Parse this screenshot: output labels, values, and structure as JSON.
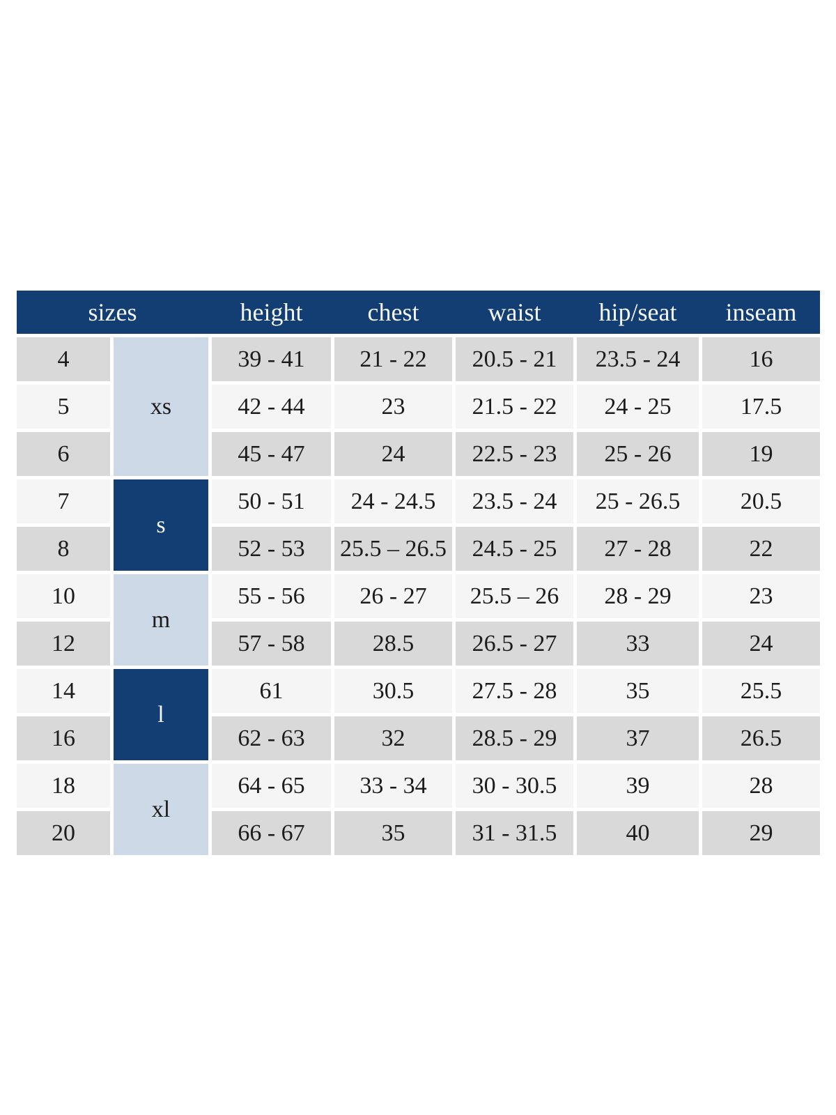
{
  "theme": {
    "page_bg": "#ffffff",
    "header_bg": "#133e74",
    "header_text": "#f4f6f9",
    "group_light_bg": "#cdd9e6",
    "group_dark_bg": "#133e74",
    "group_dark_text": "#f4f6f9",
    "row_gray_bg": "#d9d9d9",
    "row_light_bg": "#f5f5f5",
    "cell_text": "#1c1c1c"
  },
  "chart_data": {
    "type": "table",
    "title": "",
    "columns": [
      "sizes",
      "height",
      "chest",
      "waist",
      "hip/seat",
      "inseam"
    ],
    "size_groups": [
      {
        "label": "xs",
        "sizes": [
          "4",
          "5",
          "6"
        ]
      },
      {
        "label": "s",
        "sizes": [
          "7",
          "8"
        ]
      },
      {
        "label": "m",
        "sizes": [
          "10",
          "12"
        ]
      },
      {
        "label": "l",
        "sizes": [
          "14",
          "16"
        ]
      },
      {
        "label": "xl",
        "sizes": [
          "18",
          "20"
        ]
      }
    ],
    "rows": [
      {
        "size": "4",
        "group": "xs",
        "height": "39 - 41",
        "chest": "21 - 22",
        "waist": "20.5 - 21",
        "hip_seat": "23.5 - 24",
        "inseam": "16"
      },
      {
        "size": "5",
        "group": "xs",
        "height": "42 - 44",
        "chest": "23",
        "waist": "21.5 - 22",
        "hip_seat": "24 - 25",
        "inseam": "17.5"
      },
      {
        "size": "6",
        "group": "xs",
        "height": "45 - 47",
        "chest": "24",
        "waist": "22.5 - 23",
        "hip_seat": "25 - 26",
        "inseam": "19"
      },
      {
        "size": "7",
        "group": "s",
        "height": "50 - 51",
        "chest": "24 - 24.5",
        "waist": "23.5 - 24",
        "hip_seat": "25 - 26.5",
        "inseam": "20.5"
      },
      {
        "size": "8",
        "group": "s",
        "height": "52 - 53",
        "chest": "25.5 – 26.5",
        "waist": "24.5 - 25",
        "hip_seat": "27 - 28",
        "inseam": "22"
      },
      {
        "size": "10",
        "group": "m",
        "height": "55 - 56",
        "chest": "26 - 27",
        "waist": "25.5 – 26",
        "hip_seat": "28 - 29",
        "inseam": "23"
      },
      {
        "size": "12",
        "group": "m",
        "height": "57 - 58",
        "chest": "28.5",
        "waist": "26.5 - 27",
        "hip_seat": "33",
        "inseam": "24"
      },
      {
        "size": "14",
        "group": "l",
        "height": "61",
        "chest": "30.5",
        "waist": "27.5 - 28",
        "hip_seat": "35",
        "inseam": "25.5"
      },
      {
        "size": "16",
        "group": "l",
        "height": "62 - 63",
        "chest": "32",
        "waist": "28.5 - 29",
        "hip_seat": "37",
        "inseam": "26.5"
      },
      {
        "size": "18",
        "group": "xl",
        "height": "64 - 65",
        "chest": "33 - 34",
        "waist": "30 - 30.5",
        "hip_seat": "39",
        "inseam": "28"
      },
      {
        "size": "20",
        "group": "xl",
        "height": "66 - 67",
        "chest": "35",
        "waist": "31 - 31.5",
        "hip_seat": "40",
        "inseam": "29"
      }
    ]
  }
}
